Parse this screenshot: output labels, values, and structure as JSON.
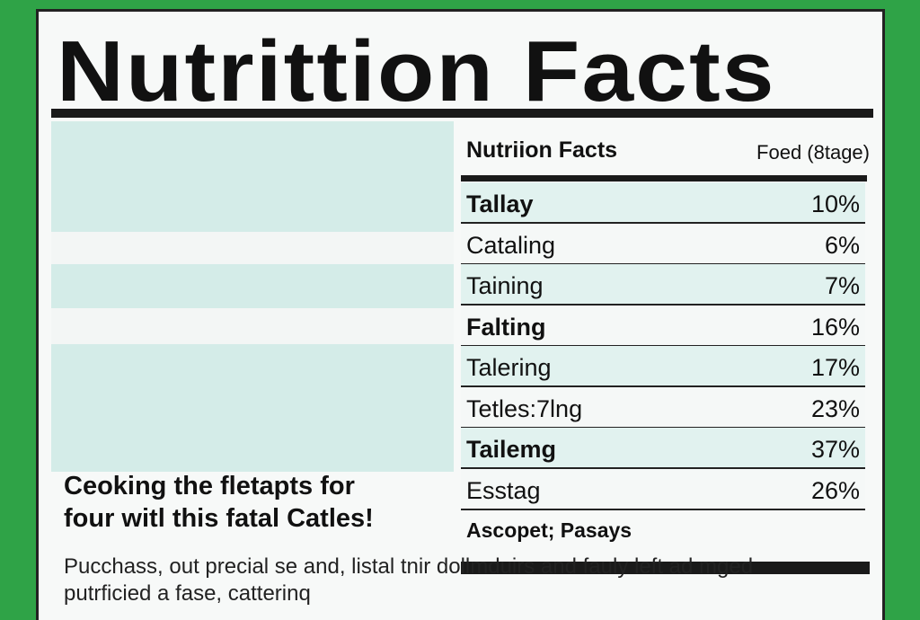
{
  "title": "Nutrittion Facts",
  "table": {
    "header": [
      "Nutriion Facts",
      "Foed (8tage)"
    ],
    "rows": [
      [
        "Tallay",
        "10%"
      ],
      [
        "Cataling",
        "6%"
      ],
      [
        "Taining",
        "7%"
      ],
      [
        "Falting",
        "16%"
      ],
      [
        "Talering",
        "17%"
      ],
      [
        "Tetles:7lng",
        "23%"
      ],
      [
        "Tailemg",
        "37%"
      ],
      [
        "Esstag",
        "26%"
      ]
    ],
    "footer": "Ascopet; Pasays"
  },
  "promo": {
    "headline": [
      "Ceoking the fletapts for",
      "four witl this fatal Catles!"
    ],
    "body": [
      "Pucchass, out precial se and, listal tnir dollmduirs and fauly left ad mged",
      "putrficied a fase, catterinq"
    ]
  }
}
